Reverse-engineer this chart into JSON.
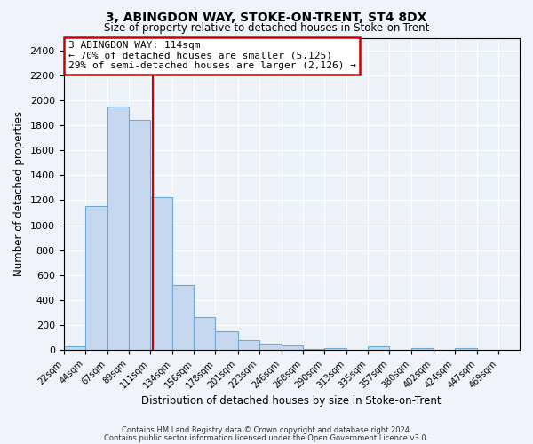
{
  "title": "3, ABINGDON WAY, STOKE-ON-TRENT, ST4 8DX",
  "subtitle": "Size of property relative to detached houses in Stoke-on-Trent",
  "xlabel": "Distribution of detached houses by size in Stoke-on-Trent",
  "ylabel": "Number of detached properties",
  "bin_labels": [
    "22sqm",
    "44sqm",
    "67sqm",
    "89sqm",
    "111sqm",
    "134sqm",
    "156sqm",
    "178sqm",
    "201sqm",
    "223sqm",
    "246sqm",
    "268sqm",
    "290sqm",
    "313sqm",
    "335sqm",
    "357sqm",
    "380sqm",
    "402sqm",
    "424sqm",
    "447sqm",
    "469sqm"
  ],
  "bin_edges": [
    22,
    44,
    67,
    89,
    111,
    134,
    156,
    178,
    201,
    223,
    246,
    268,
    290,
    313,
    335,
    357,
    380,
    402,
    424,
    447,
    469
  ],
  "bar_heights": [
    30,
    1155,
    1950,
    1845,
    1225,
    520,
    265,
    150,
    80,
    55,
    40,
    10,
    15,
    5,
    30,
    5,
    15,
    5,
    15,
    5,
    5
  ],
  "bar_color": "#c5d8f0",
  "bar_edgecolor": "#6aaad4",
  "bar_linewidth": 0.8,
  "vline_x": 114,
  "vline_color": "#cc0000",
  "vline_linewidth": 1.5,
  "annotation_title": "3 ABINGDON WAY: 114sqm",
  "annotation_line1": "← 70% of detached houses are smaller (5,125)",
  "annotation_line2": "29% of semi-detached houses are larger (2,126) →",
  "ylim": [
    0,
    2500
  ],
  "yticks": [
    0,
    200,
    400,
    600,
    800,
    1000,
    1200,
    1400,
    1600,
    1800,
    2000,
    2200,
    2400
  ],
  "background_color": "#f0f4fa",
  "plot_background_color": "#edf1f8",
  "grid_color": "#ffffff",
  "footer1": "Contains HM Land Registry data © Crown copyright and database right 2024.",
  "footer2": "Contains public sector information licensed under the Open Government Licence v3.0."
}
